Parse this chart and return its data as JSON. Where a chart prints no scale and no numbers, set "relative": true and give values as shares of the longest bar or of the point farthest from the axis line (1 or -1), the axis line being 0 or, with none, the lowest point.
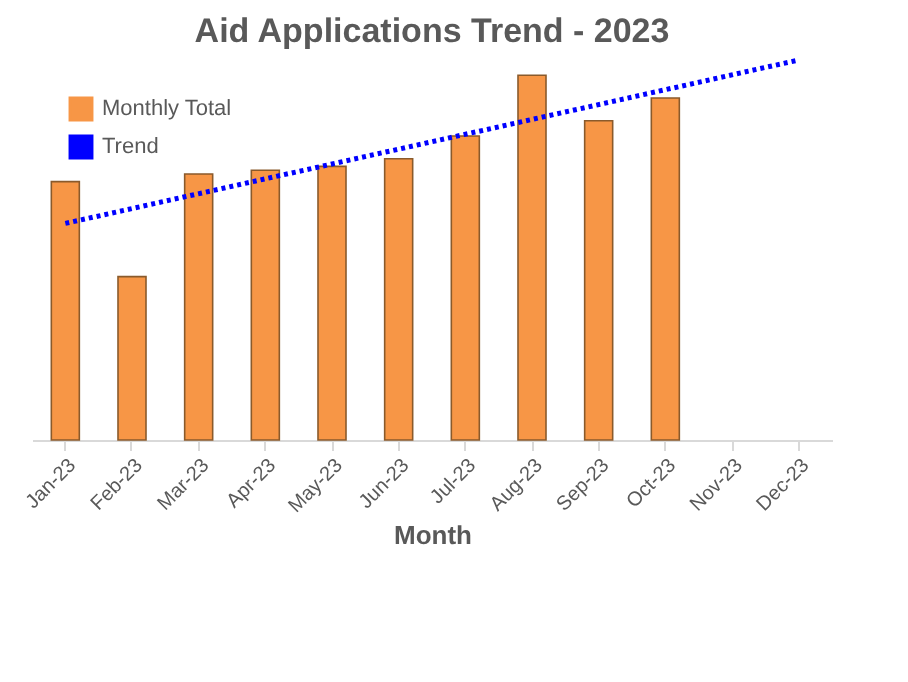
{
  "chart_data": {
    "type": "bar",
    "title": "Aid Applications Trend - 2023",
    "xlabel": "Month",
    "relative": true,
    "legend": "top left",
    "categories": [
      "Jan-23",
      "Feb-23",
      "Mar-23",
      "Apr-23",
      "May-23",
      "Jun-23",
      "Jul-23",
      "Aug-23",
      "Sep-23",
      "Oct-23",
      "Nov-23",
      "Dec-23"
    ],
    "series": [
      {
        "name": "Monthly Total",
        "color": "#f79646",
        "values": [
          0.68,
          0.43,
          0.7,
          0.71,
          0.72,
          0.74,
          0.8,
          0.96,
          0.84,
          0.9,
          null,
          null
        ]
      },
      {
        "name": "Trend",
        "type": "line",
        "color": "#0000ff",
        "line_style": "dotted",
        "x": [
          "Jan-23",
          "Dec-23"
        ],
        "values": [
          0.57,
          1.0
        ]
      }
    ]
  }
}
